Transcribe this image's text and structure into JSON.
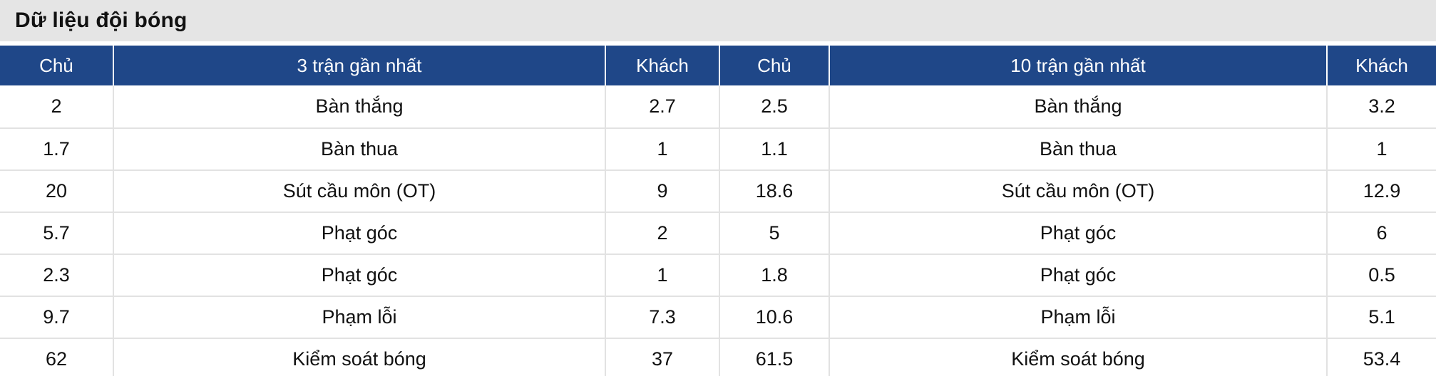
{
  "title": "Dữ liệu đội bóng",
  "colors": {
    "header_bg": "#1f4788",
    "titlebar_bg": "#e5e5e5",
    "grid_line": "#e2e2e2",
    "text": "#111111"
  },
  "table": {
    "headers": [
      "Chủ",
      "3 trận gần nhất",
      "Khách",
      "Chủ",
      "10 trận gần nhất",
      "Khách"
    ],
    "rows": [
      [
        "2",
        "Bàn thắng",
        "2.7",
        "2.5",
        "Bàn thắng",
        "3.2"
      ],
      [
        "1.7",
        "Bàn thua",
        "1",
        "1.1",
        "Bàn thua",
        "1"
      ],
      [
        "20",
        "Sút cầu môn (OT)",
        "9",
        "18.6",
        "Sút cầu môn (OT)",
        "12.9"
      ],
      [
        "5.7",
        "Phạt góc",
        "2",
        "5",
        "Phạt góc",
        "6"
      ],
      [
        "2.3",
        "Phạt góc",
        "1",
        "1.8",
        "Phạt góc",
        "0.5"
      ],
      [
        "9.7",
        "Phạm lỗi",
        "7.3",
        "10.6",
        "Phạm lỗi",
        "5.1"
      ],
      [
        "62",
        "Kiểm soát bóng",
        "37",
        "61.5",
        "Kiểm soát bóng",
        "53.4"
      ]
    ]
  }
}
